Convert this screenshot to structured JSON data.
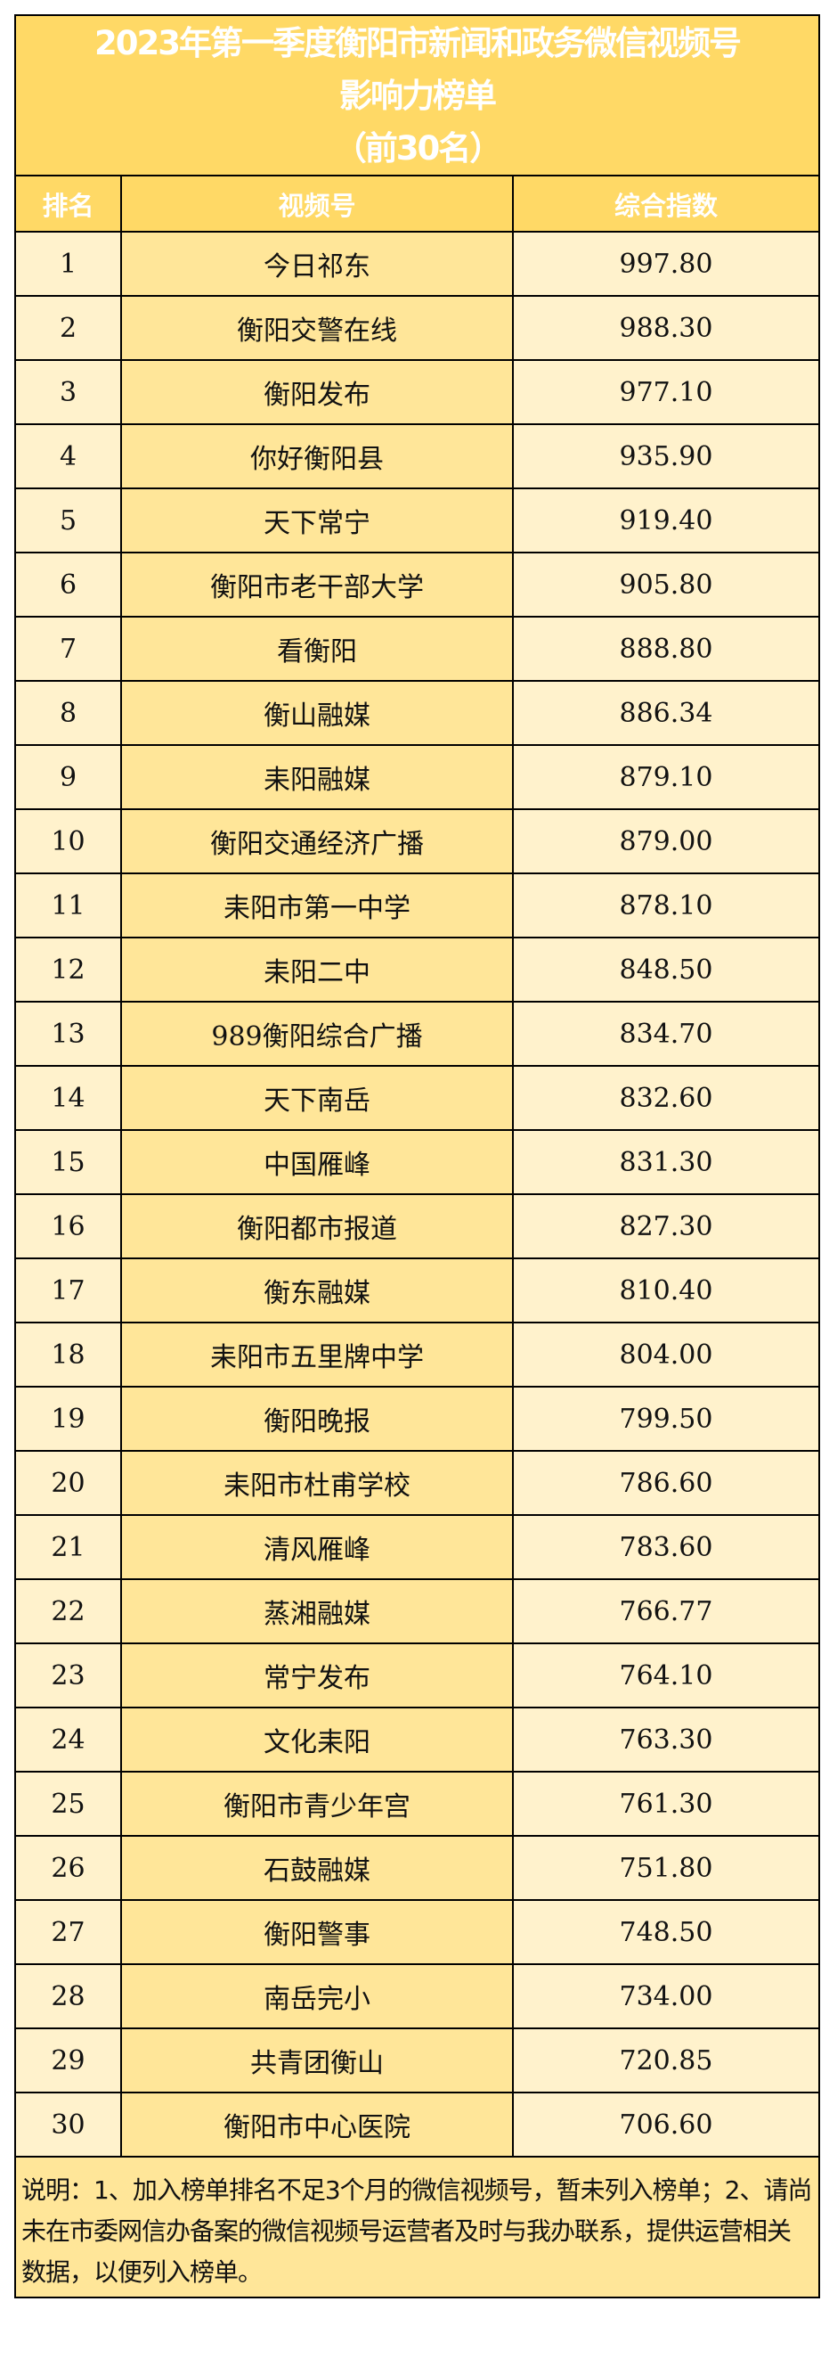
{
  "title": {
    "line1": "2023年第一季度衡阳市新闻和政务微信视频号",
    "line2": "影响力榜单",
    "line3": "（前30名）"
  },
  "columns": [
    "排名",
    "视频号",
    "综合指数"
  ],
  "rows": [
    {
      "rank": "1",
      "name": "今日祁东",
      "score": "997.80"
    },
    {
      "rank": "2",
      "name": "衡阳交警在线",
      "score": "988.30"
    },
    {
      "rank": "3",
      "name": "衡阳发布",
      "score": "977.10"
    },
    {
      "rank": "4",
      "name": "你好衡阳县",
      "score": "935.90"
    },
    {
      "rank": "5",
      "name": "天下常宁",
      "score": "919.40"
    },
    {
      "rank": "6",
      "name": "衡阳市老干部大学",
      "score": "905.80"
    },
    {
      "rank": "7",
      "name": "看衡阳",
      "score": "888.80"
    },
    {
      "rank": "8",
      "name": "衡山融媒",
      "score": "886.34"
    },
    {
      "rank": "9",
      "name": "耒阳融媒",
      "score": "879.10"
    },
    {
      "rank": "10",
      "name": "衡阳交通经济广播",
      "score": "879.00"
    },
    {
      "rank": "11",
      "name": "耒阳市第一中学",
      "score": "878.10"
    },
    {
      "rank": "12",
      "name": "耒阳二中",
      "score": "848.50"
    },
    {
      "rank": "13",
      "name": "989衡阳综合广播",
      "score": "834.70"
    },
    {
      "rank": "14",
      "name": "天下南岳",
      "score": "832.60"
    },
    {
      "rank": "15",
      "name": "中国雁峰",
      "score": "831.30"
    },
    {
      "rank": "16",
      "name": "衡阳都市报道",
      "score": "827.30"
    },
    {
      "rank": "17",
      "name": "衡东融媒",
      "score": "810.40"
    },
    {
      "rank": "18",
      "name": "耒阳市五里牌中学",
      "score": "804.00"
    },
    {
      "rank": "19",
      "name": "衡阳晚报",
      "score": "799.50"
    },
    {
      "rank": "20",
      "name": "耒阳市杜甫学校",
      "score": "786.60"
    },
    {
      "rank": "21",
      "name": "清风雁峰",
      "score": "783.60"
    },
    {
      "rank": "22",
      "name": "蒸湘融媒",
      "score": "766.77"
    },
    {
      "rank": "23",
      "name": "常宁发布",
      "score": "764.10"
    },
    {
      "rank": "24",
      "name": "文化耒阳",
      "score": "763.30"
    },
    {
      "rank": "25",
      "name": "衡阳市青少年宫",
      "score": "761.30"
    },
    {
      "rank": "26",
      "name": "石鼓融媒",
      "score": "751.80"
    },
    {
      "rank": "27",
      "name": "衡阳警事",
      "score": "748.50"
    },
    {
      "rank": "28",
      "name": "南岳完小",
      "score": "734.00"
    },
    {
      "rank": "29",
      "name": "共青团衡山",
      "score": "720.85"
    },
    {
      "rank": "30",
      "name": "衡阳市中心医院",
      "score": "706.60"
    }
  ],
  "note": "说明：1、加入榜单排名不足3个月的微信视频号，暂未列入榜单；2、请尚未在市委网信办备案的微信视频号运营者及时与我办联系，提供运营相关数据，以便列入榜单。",
  "colors": {
    "header_bg": "#FFD966",
    "name_col_bg": "#FFE699",
    "light_col_bg": "#FFF2CC",
    "title_text": "#FFFFFF"
  }
}
